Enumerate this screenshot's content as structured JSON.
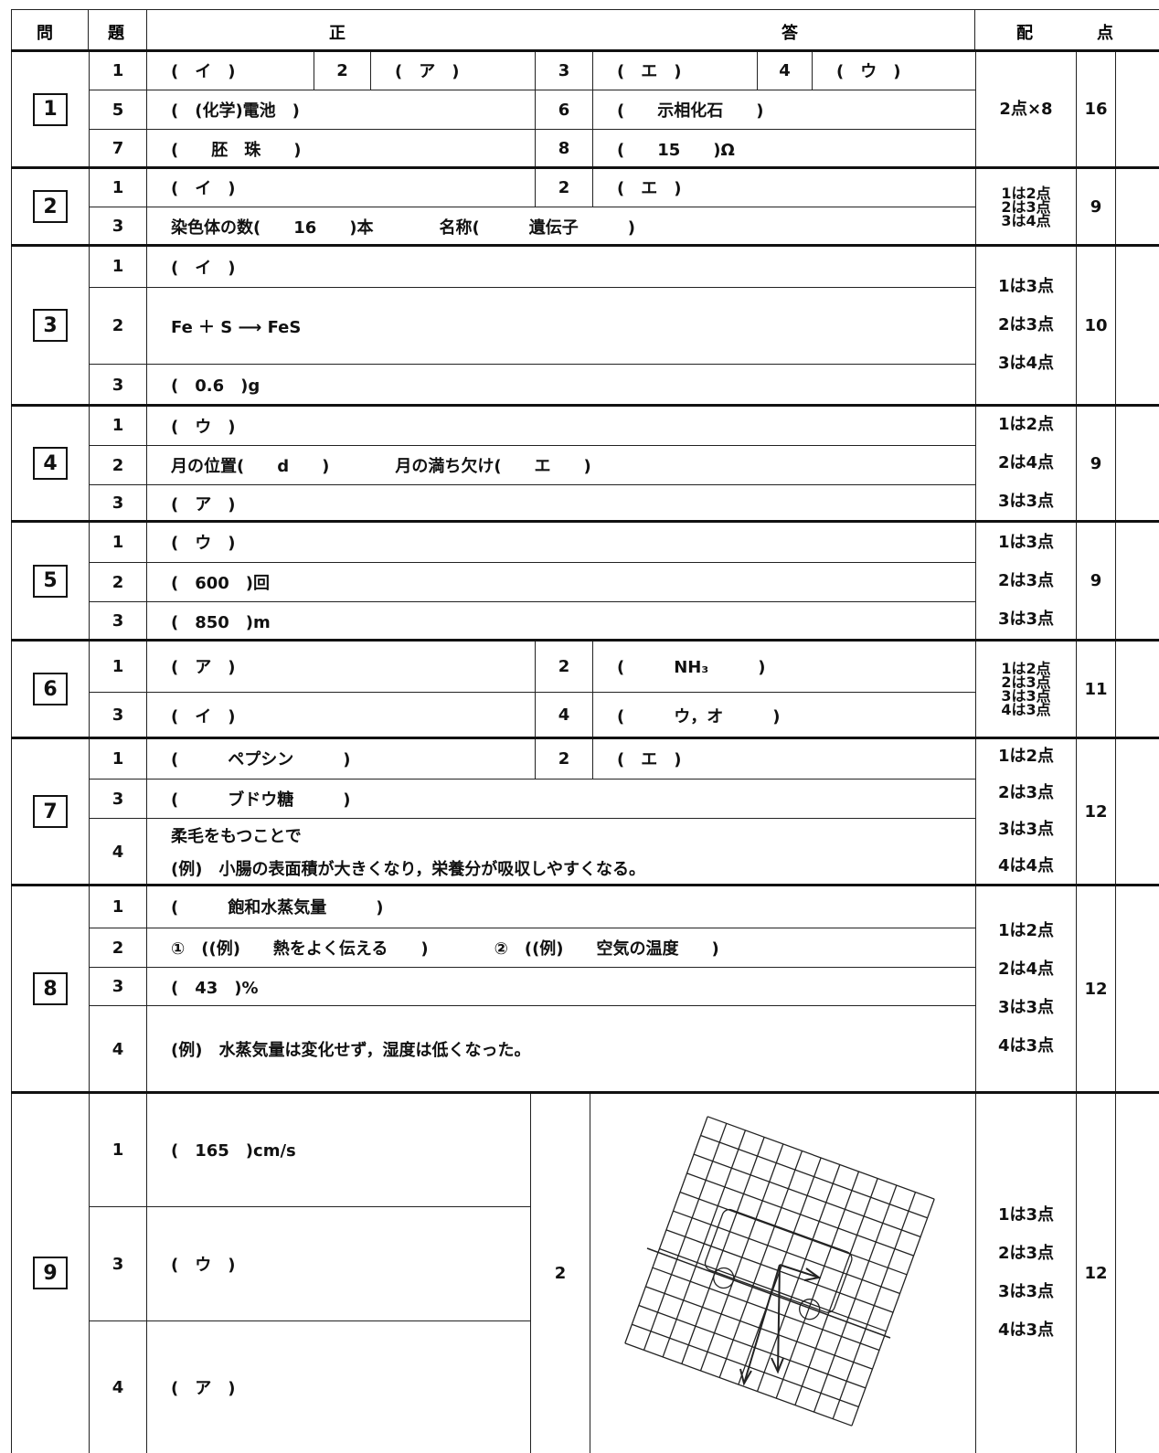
{
  "header": {
    "mon": "問",
    "dai": "題",
    "sei": "正",
    "tou": "答",
    "hai": "配",
    "ten": "点"
  },
  "sections": [
    {
      "label": "1",
      "rows": [
        [
          "1",
          "(　イ　)",
          "2",
          "(　ア　)",
          "3",
          "(　エ　)",
          "4",
          "(　ウ　)"
        ],
        [
          "5",
          "(　(化学)電池　)",
          "6",
          "(　　示相化石　　)"
        ],
        [
          "7",
          "(　　胚　珠　　)",
          "8",
          "(　　15　　)Ω"
        ]
      ],
      "scoring": [
        "2点×8"
      ],
      "points": "16"
    },
    {
      "label": "2",
      "rows": [
        [
          "1",
          "(　イ　)",
          "2",
          "(　エ　)"
        ],
        [
          "3",
          "染色体の数(　　16　　)本　　　　名称(　　　遺伝子　　　)"
        ]
      ],
      "scoring": [
        "1は2点",
        "2は3点",
        "3は4点"
      ],
      "points": "9"
    },
    {
      "label": "3",
      "rows": [
        [
          "1",
          "(　イ　)"
        ],
        [
          "2",
          "Fe ＋ S ⟶ FeS"
        ],
        [
          "3",
          "(　0.6　)g"
        ]
      ],
      "scoring": [
        "1は3点",
        "2は3点",
        "3は4点"
      ],
      "points": "10"
    },
    {
      "label": "4",
      "rows": [
        [
          "1",
          "(　ウ　)"
        ],
        [
          "2",
          "月の位置(　　d　　)　　　　月の満ち欠け(　　エ　　)"
        ],
        [
          "3",
          "(　ア　)"
        ]
      ],
      "scoring": [
        "1は2点",
        "2は4点",
        "3は3点"
      ],
      "points": "9"
    },
    {
      "label": "5",
      "rows": [
        [
          "1",
          "(　ウ　)"
        ],
        [
          "2",
          "(　600　)回"
        ],
        [
          "3",
          "(　850　)m"
        ]
      ],
      "scoring": [
        "1は3点",
        "2は3点",
        "3は3点"
      ],
      "points": "9"
    },
    {
      "label": "6",
      "rows": [
        [
          "1",
          "(　ア　)",
          "2",
          "(　　　NH₃　　　)"
        ],
        [
          "3",
          "(　イ　)",
          "4",
          "(　　　ウ，オ　　　)"
        ]
      ],
      "scoring": [
        "1は2点",
        "2は3点",
        "3は3点",
        "4は3点"
      ],
      "points": "11"
    },
    {
      "label": "7",
      "rows": [
        [
          "1",
          "(　　　ペプシン　　　)",
          "2",
          "(　エ　)"
        ],
        [
          "3",
          "(　　　ブドウ糖　　　)"
        ],
        [
          "4",
          [
            "柔毛をもつことで",
            "(例)　小腸の表面積が大きくなり，栄養分が吸収しやすくなる。"
          ]
        ]
      ],
      "scoring": [
        "1は2点",
        "2は3点",
        "3は3点",
        "4は4点"
      ],
      "points": "12"
    },
    {
      "label": "8",
      "rows": [
        [
          "1",
          "(　　　飽和水蒸気量　　　)"
        ],
        [
          "2",
          "①　((例)　　熱をよく伝える　　)　　　　②　((例)　　空気の温度　　)"
        ],
        [
          "3",
          "(　43　)%"
        ],
        [
          "4",
          "(例)　水蒸気量は変化せず，湿度は低くなった。"
        ]
      ],
      "scoring": [
        "1は2点",
        "2は4点",
        "3は3点",
        "4は3点"
      ],
      "points": "12"
    },
    {
      "label": "9",
      "rows": [
        [
          "1",
          "(　165　)cm/s"
        ],
        [
          "3",
          "(　ウ　)"
        ],
        [
          "4",
          "(　ア　)"
        ]
      ],
      "figure_label": "2",
      "scoring": [
        "1は3点",
        "2は3点",
        "3は3点",
        "4は3点"
      ],
      "points": "12"
    }
  ]
}
